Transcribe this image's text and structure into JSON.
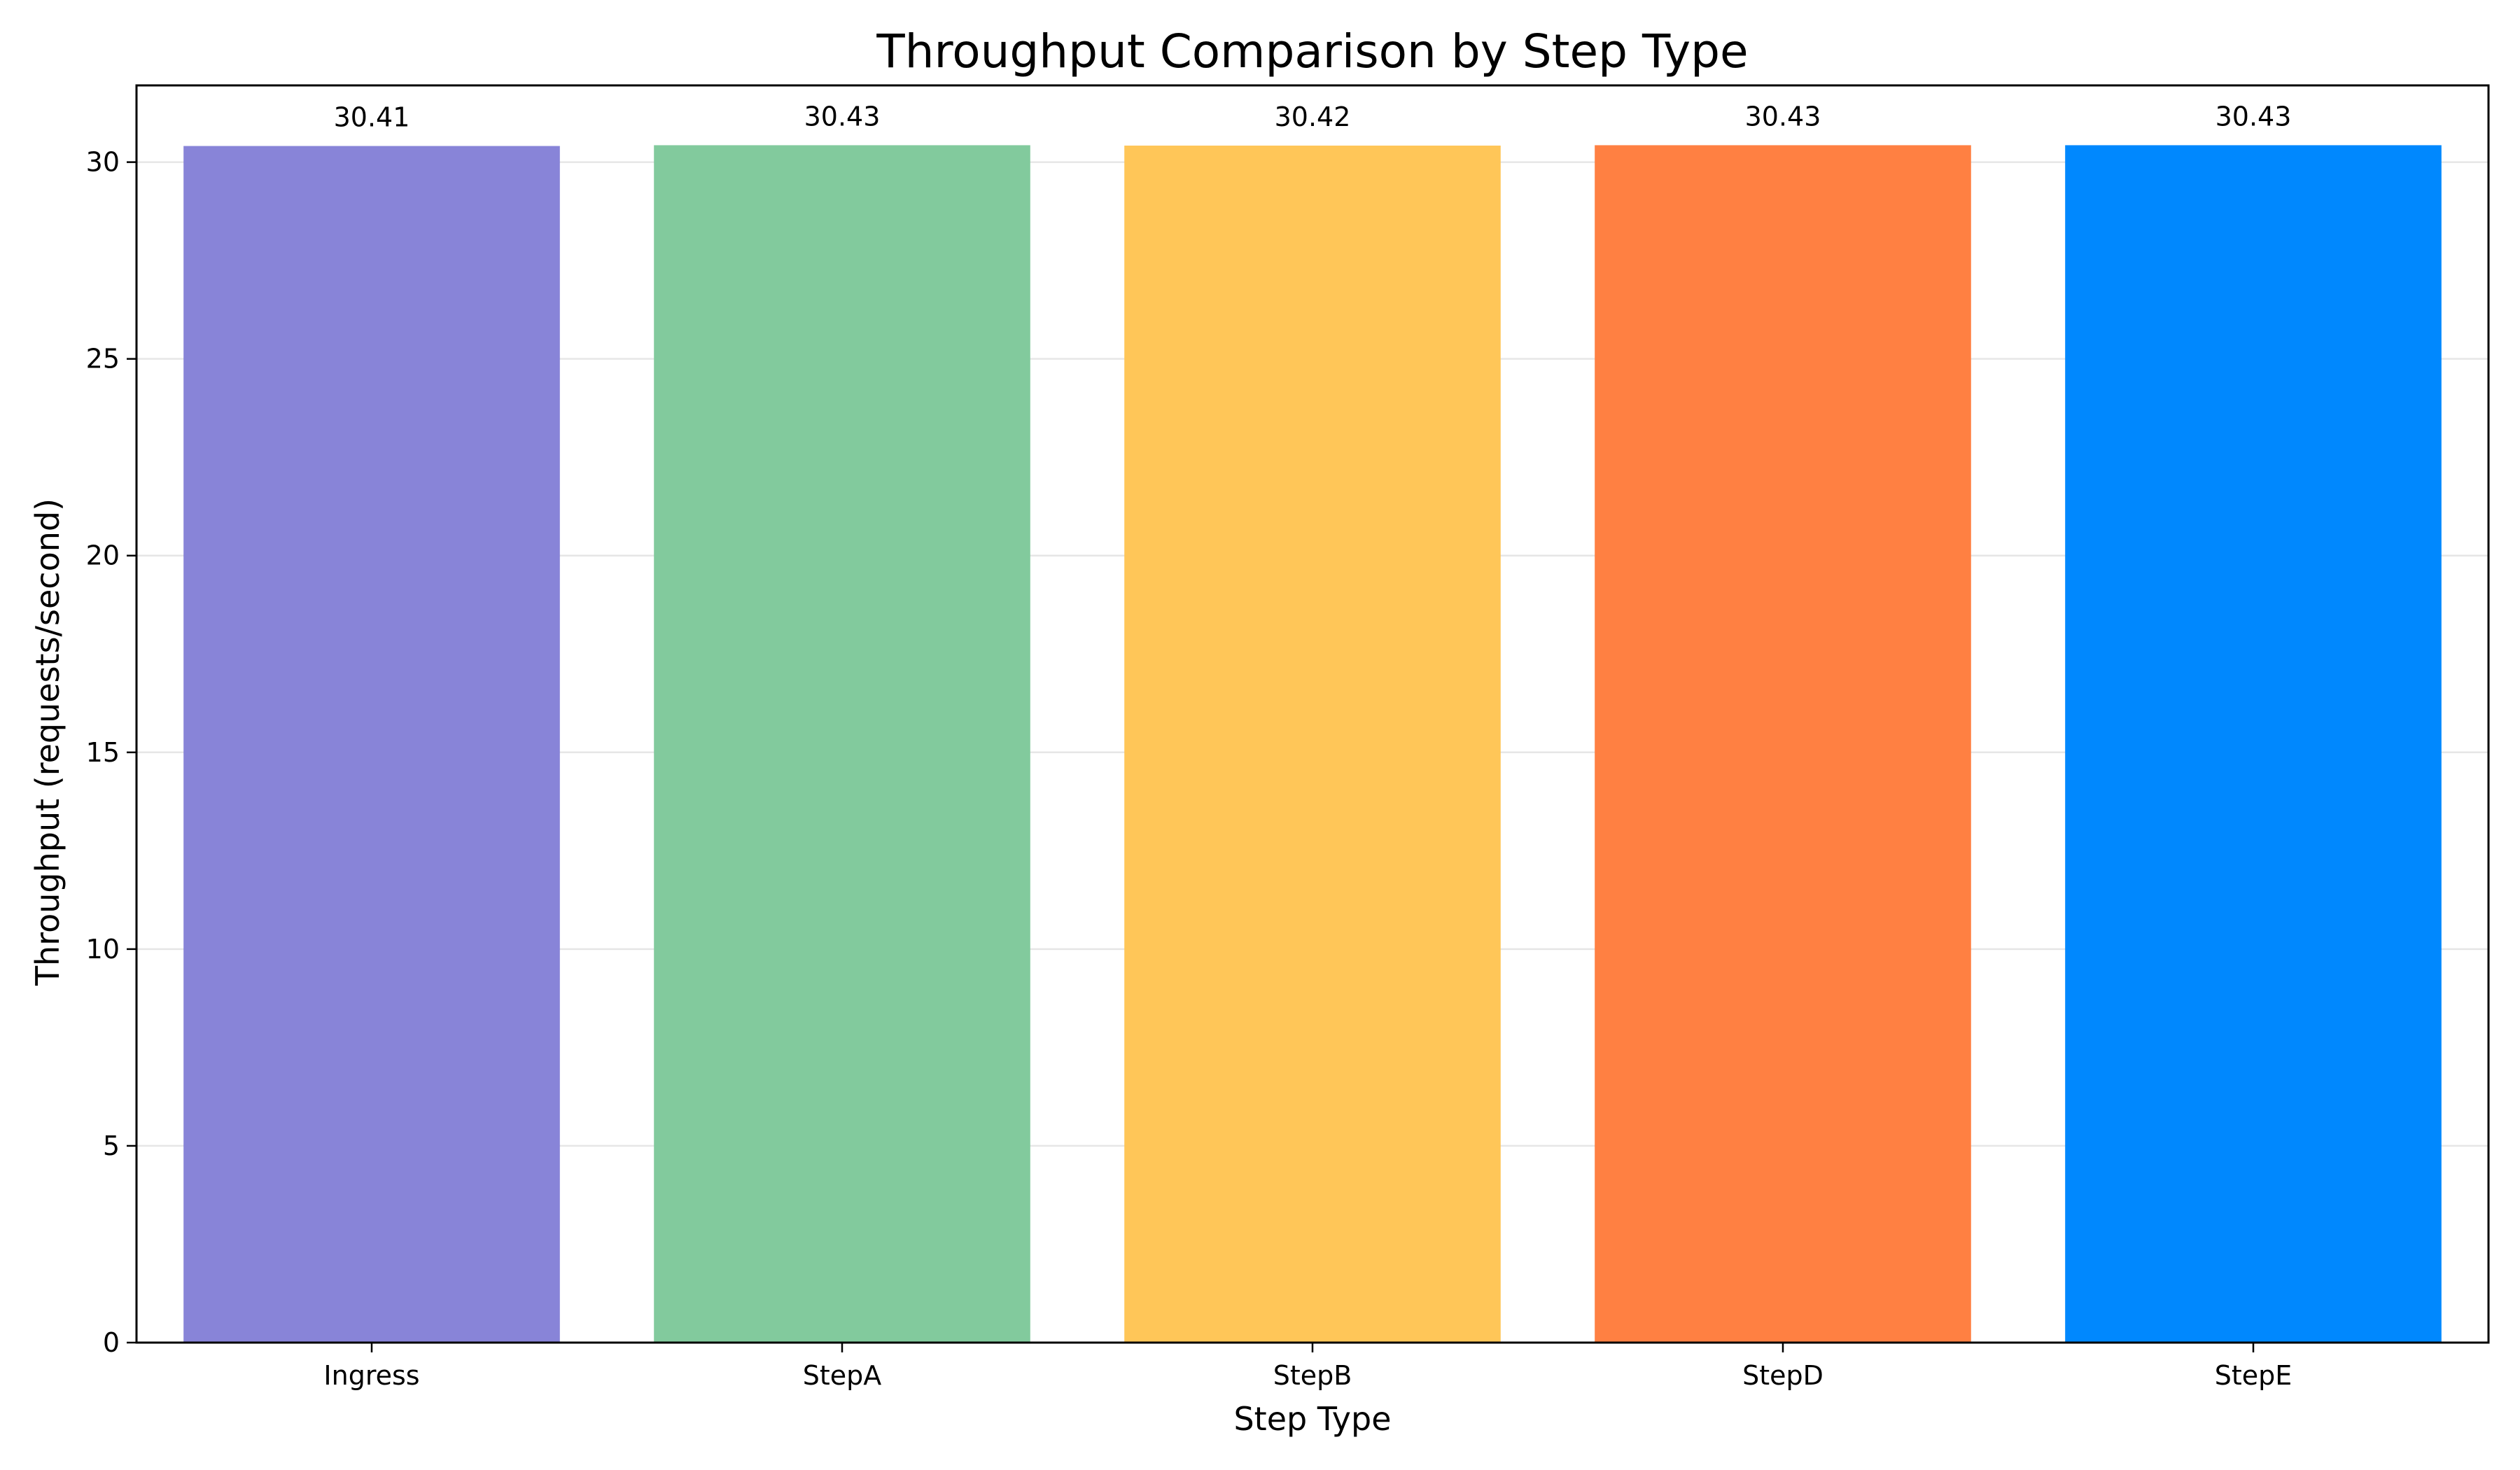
{
  "chart_data": {
    "type": "bar",
    "title": "Throughput Comparison by Step Type",
    "xlabel": "Step Type",
    "ylabel": "Throughput (requests/second)",
    "categories": [
      "Ingress",
      "StepA",
      "StepB",
      "StepD",
      "StepE"
    ],
    "values": [
      30.41,
      30.43,
      30.42,
      30.43,
      30.43
    ],
    "value_labels": [
      "30.41",
      "30.43",
      "30.42",
      "30.43",
      "30.43"
    ],
    "colors": [
      "#8884d8",
      "#82ca9d",
      "#ffc658",
      "#ff8042",
      "#0088fe"
    ],
    "yticks": [
      0,
      5,
      10,
      15,
      20,
      25,
      30
    ],
    "ylim": [
      0,
      31.95
    ],
    "grid": "y",
    "legend": "none"
  }
}
